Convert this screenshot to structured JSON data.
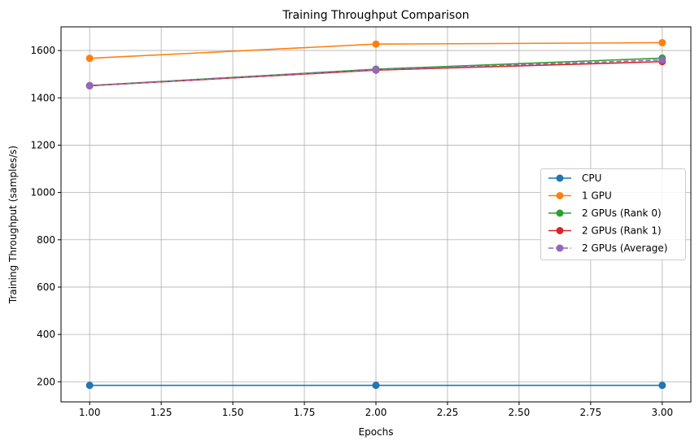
{
  "chart_data": {
    "type": "line",
    "title": "Training Throughput Comparison",
    "xlabel": "Epochs",
    "ylabel": "Training Throughput (samples/s)",
    "xlim": [
      0.9,
      3.1
    ],
    "ylim": [
      115,
      1700
    ],
    "xticks": [
      1.0,
      1.25,
      1.5,
      1.75,
      2.0,
      2.25,
      2.5,
      2.75,
      3.0
    ],
    "xtick_labels": [
      "1.00",
      "1.25",
      "1.50",
      "1.75",
      "2.00",
      "2.25",
      "2.50",
      "2.75",
      "3.00"
    ],
    "yticks": [
      200,
      400,
      600,
      800,
      1000,
      1200,
      1400,
      1600
    ],
    "ytick_labels": [
      "200",
      "400",
      "600",
      "800",
      "1000",
      "1200",
      "1400",
      "1600"
    ],
    "grid": true,
    "legend_position": "center-right",
    "x": [
      1,
      2,
      3
    ],
    "series": [
      {
        "name": "CPU",
        "values": [
          185,
          185,
          185
        ],
        "color": "#1f77b4",
        "dashed": false
      },
      {
        "name": "1 GPU",
        "values": [
          1567,
          1627,
          1633
        ],
        "color": "#ff7f0e",
        "dashed": false
      },
      {
        "name": "2 GPUs (Rank 0)",
        "values": [
          1452,
          1521,
          1568
        ],
        "color": "#2ca02c",
        "dashed": false
      },
      {
        "name": "2 GPUs (Rank 1)",
        "values": [
          1451,
          1517,
          1553
        ],
        "color": "#d62728",
        "dashed": false
      },
      {
        "name": "2 GPUs (Average)",
        "values": [
          1451,
          1519,
          1560
        ],
        "color": "#9467bd",
        "dashed": true
      }
    ]
  }
}
